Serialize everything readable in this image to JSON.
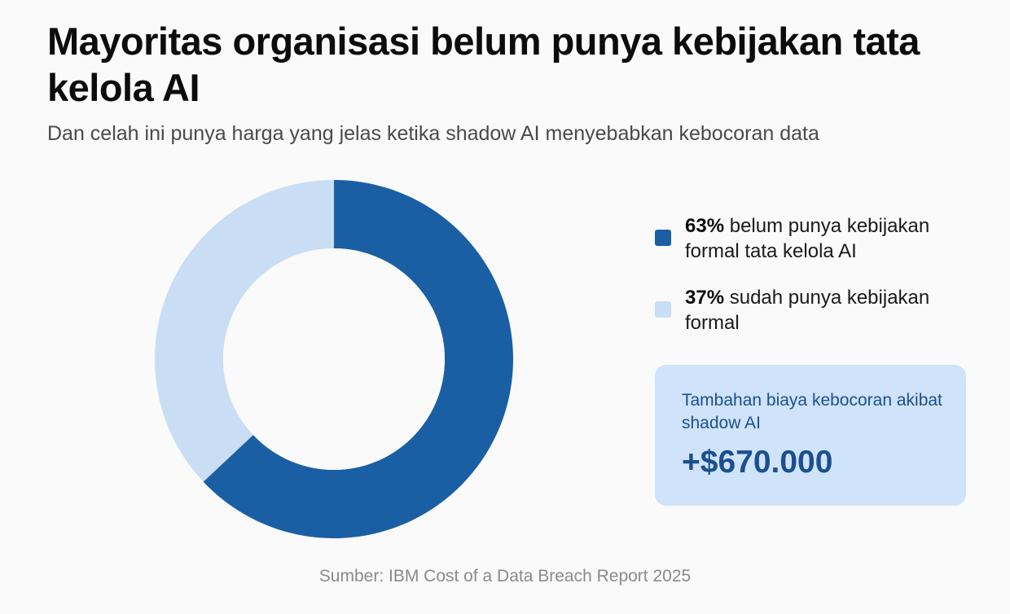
{
  "header": {
    "title": "Mayoritas organisasi belum punya kebijakan tata kelola AI",
    "subtitle": "Dan celah ini punya harga yang jelas ketika shadow AI menyebabkan kebocoran data"
  },
  "chart_data": {
    "type": "pie",
    "style": "donut",
    "legend_placement": "right",
    "slices": [
      {
        "label_value": "63%",
        "label_text": "belum punya kebijakan formal tata kelola AI",
        "value": 63,
        "color": "#1a5fa3"
      },
      {
        "label_value": "37%",
        "label_text": "sudah punya kebijakan formal",
        "value": 37,
        "color": "#c9def4"
      }
    ]
  },
  "callout": {
    "label": "Tambahan biaya kebocoran akibat shadow AI",
    "value": "+$670.000"
  },
  "footer": {
    "source": "Sumber: IBM Cost of a Data Breach Report 2025"
  },
  "colors": {
    "background": "#fafafa",
    "primary": "#1a5fa3",
    "secondary": "#c9def4",
    "callout_bg": "#cfe3fa",
    "callout_text": "#1b4f8e"
  }
}
